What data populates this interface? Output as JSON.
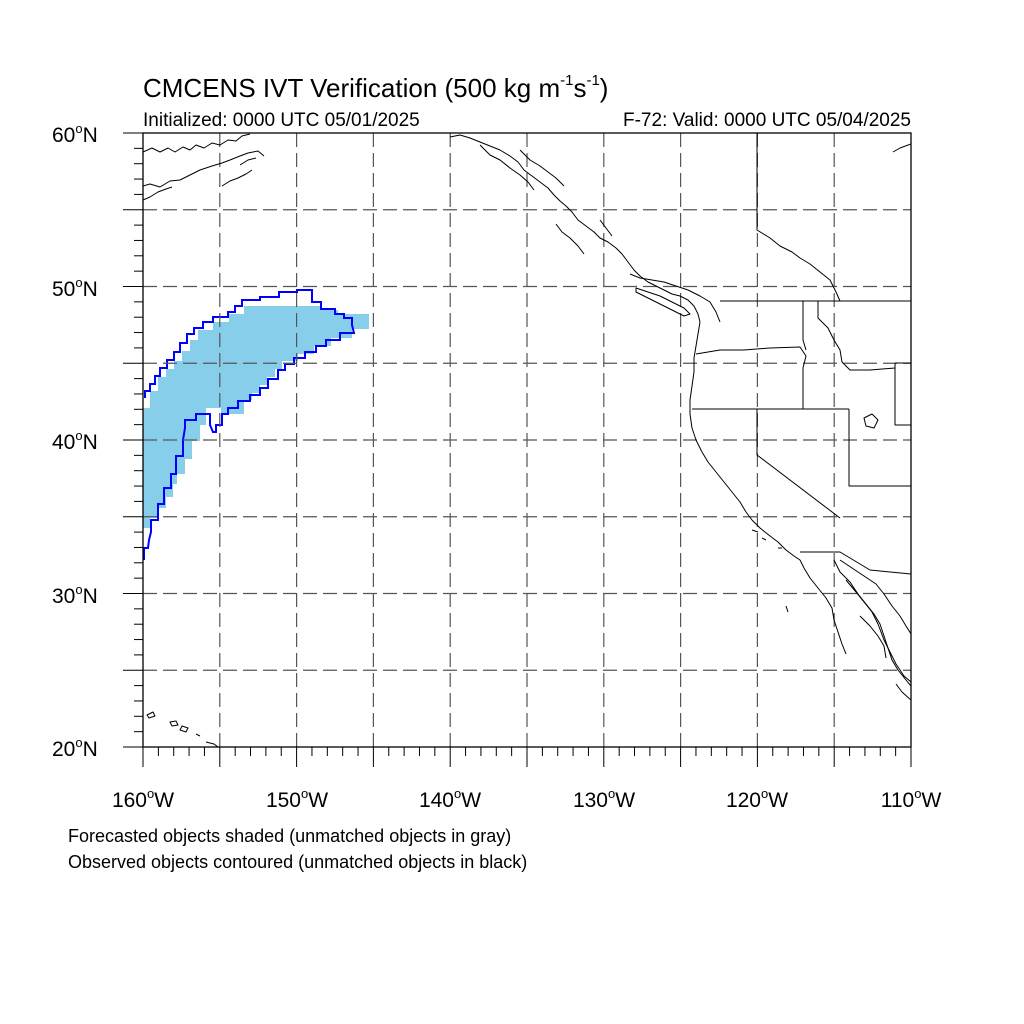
{
  "title": {
    "main": "CMCENS IVT Verification (500 kg m",
    "exp1": "-1",
    "mid": "s",
    "exp2": "-1",
    "close": ")"
  },
  "subtitle": {
    "initialized": "Initialized: 0000 UTC 05/01/2025",
    "valid": "F-72: Valid: 0000 UTC 05/04/2025"
  },
  "axes": {
    "lat_labels": [
      "60oN",
      "50oN",
      "40oN",
      "30oN",
      "20oN"
    ],
    "lon_labels": [
      "160oW",
      "150oW",
      "140oW",
      "130oW",
      "120oW",
      "110oW"
    ],
    "lat_range": [
      20,
      60
    ],
    "lon_range": [
      -160,
      -110
    ],
    "grid": "dashed, every 5 degrees"
  },
  "legend": {
    "forecast_note": "Forecasted objects shaded (unmatched objects in gray)",
    "observed_note": "Observed objects contoured (unmatched objects in black)"
  },
  "colors": {
    "forecast_fill": "#87ceeb",
    "observed_contour": "#0000ff",
    "coastline": "#000000",
    "grid": "#555555"
  },
  "objects": {
    "forecast": {
      "matched": true,
      "shape": "shaded",
      "lon_extent": [
        -160,
        -145
      ],
      "lat_extent": [
        34.5,
        48.8
      ]
    },
    "observed": {
      "matched": true,
      "shape": "contour",
      "lon_extent": [
        -160,
        -146.5
      ],
      "lat_extent": [
        32.3,
        49.7
      ]
    }
  }
}
